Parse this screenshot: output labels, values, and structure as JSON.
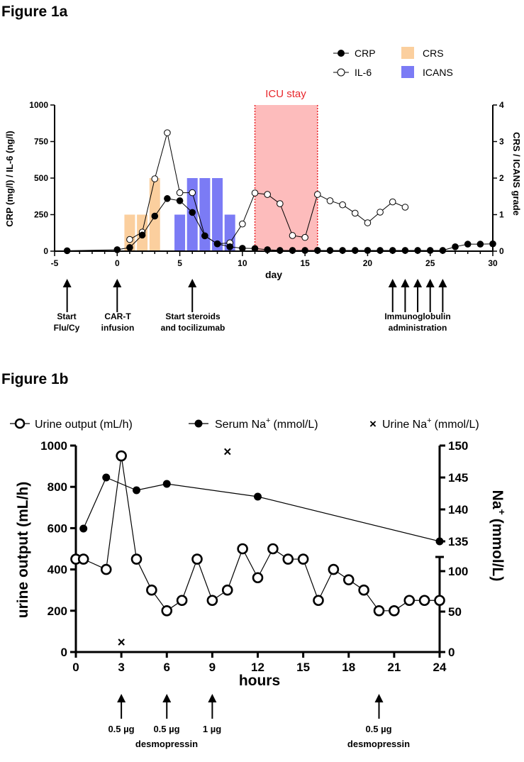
{
  "chart_data": [
    {
      "type": "line",
      "title": "Figure 1a",
      "xlabel": "day",
      "ylabel": "CRP (mg/l) / IL-6 (ng/l)",
      "y2label": "CRS / ICANS grade",
      "xlim": [
        -5,
        30
      ],
      "ylim": [
        0,
        1000
      ],
      "y2lim": [
        0,
        4
      ],
      "xticks": [
        -5,
        0,
        5,
        10,
        15,
        20,
        25,
        30
      ],
      "yticks": [
        0,
        250,
        500,
        750,
        1000
      ],
      "y2ticks": [
        0,
        1,
        2,
        3,
        4
      ],
      "legend": [
        "CRP",
        "IL-6",
        "CRS",
        "ICANS"
      ],
      "legend_position": "top-right",
      "colors": {
        "CRS": "#fbcf9e",
        "ICANS": "#7b7bf5",
        "ICU": "#fdbcbc",
        "ICU_border": "#e8262b"
      },
      "shaded_region": {
        "label": "ICU stay",
        "from": 11,
        "to": 16
      },
      "series": [
        {
          "name": "CRP",
          "marker": "filled",
          "x": [
            -4,
            0,
            1,
            2,
            3,
            4,
            5,
            6,
            7,
            8,
            9,
            10,
            11,
            12,
            13,
            14,
            15,
            16,
            17,
            18,
            19,
            20,
            21,
            22,
            23,
            24,
            25,
            26,
            27,
            28,
            29,
            30
          ],
          "y": [
            3,
            10,
            25,
            110,
            240,
            360,
            345,
            265,
            105,
            50,
            30,
            20,
            18,
            10,
            5,
            5,
            5,
            5,
            5,
            5,
            5,
            5,
            5,
            5,
            5,
            5,
            5,
            5,
            30,
            48,
            48,
            50
          ]
        },
        {
          "name": "IL-6",
          "marker": "open",
          "x": [
            1,
            2,
            3,
            4,
            5,
            6,
            7,
            8,
            9,
            10,
            11,
            12,
            13,
            14,
            15,
            16,
            17,
            18,
            19,
            20,
            21,
            22,
            23
          ],
          "y": [
            80,
            130,
            495,
            810,
            400,
            400,
            105,
            50,
            57,
            186,
            398,
            388,
            325,
            107,
            94,
            388,
            345,
            317,
            260,
            194,
            267,
            337,
            301
          ]
        },
        {
          "name": "CRS",
          "type": "bar",
          "axis": "y2",
          "x": [
            1,
            2,
            3
          ],
          "y": [
            1,
            1,
            2
          ]
        },
        {
          "name": "ICANS",
          "type": "bar",
          "axis": "y2",
          "x": [
            5,
            6,
            7,
            8,
            9
          ],
          "y": [
            1,
            2,
            2,
            2,
            1
          ]
        }
      ],
      "annotations": [
        {
          "x": -4,
          "lines": [
            "Start",
            "Flu/Cy"
          ]
        },
        {
          "x": 0,
          "lines": [
            "CAR-T",
            "infusion"
          ]
        },
        {
          "x": 6,
          "lines": [
            "Start steroids",
            "and tocilizumab"
          ]
        },
        {
          "x": 24,
          "lines": [
            "Immunoglobulin",
            "administration"
          ]
        }
      ],
      "arrow_days": [
        -4,
        0,
        6,
        22,
        23,
        24,
        25,
        26
      ]
    },
    {
      "type": "line",
      "title": "Figure 1b",
      "xlabel": "hours",
      "ylabel": "urine output (mL/h)",
      "y2label": "Na+ (mmol/L)",
      "xlim": [
        0,
        24
      ],
      "ylim": [
        0,
        1000
      ],
      "y2_upper": [
        135,
        150
      ],
      "y2_lower": [
        0,
        117
      ],
      "xticks": [
        0,
        3,
        6,
        9,
        12,
        15,
        18,
        21,
        24
      ],
      "yticks": [
        0,
        200,
        400,
        600,
        800,
        1000
      ],
      "y2_upper_ticks": [
        135,
        140,
        145,
        150
      ],
      "y2_lower_ticks": [
        0,
        50,
        100
      ],
      "legend": [
        "Urine output (mL/h)",
        "Serum Na",
        "Urine Na"
      ],
      "legend_unit": "(mmol/L)",
      "legend_sup": "+",
      "legend_position": "top",
      "series": [
        {
          "name": "Urine output (mL/h)",
          "marker": "open",
          "axis": "y",
          "x": [
            0,
            0.5,
            2,
            3,
            4,
            5,
            6,
            7,
            8,
            9,
            10,
            11,
            12,
            13,
            14,
            15,
            16,
            17,
            18,
            19,
            20,
            21,
            22,
            23,
            24
          ],
          "y": [
            450,
            450,
            400,
            950,
            450,
            300,
            200,
            250,
            450,
            250,
            300,
            500,
            360,
            500,
            450,
            450,
            250,
            400,
            350,
            300,
            200,
            200,
            250,
            250,
            250
          ]
        },
        {
          "name": "Serum Na+ (mmol/L)",
          "marker": "filled",
          "axis": "y2",
          "x": [
            0.5,
            2,
            4,
            6,
            12,
            24
          ],
          "y": [
            137,
            145,
            143,
            144,
            142,
            135
          ]
        },
        {
          "name": "Urine Na+ (mmol/L)",
          "marker": "x",
          "axis": "y2",
          "x": [
            3,
            10
          ],
          "y": [
            12,
            149
          ]
        }
      ],
      "annotations": [
        {
          "x": 3,
          "lines": [
            "0.5 µg"
          ]
        },
        {
          "x": 6,
          "lines": [
            "0.5 µg"
          ]
        },
        {
          "x": 9,
          "lines": [
            "1 µg"
          ]
        },
        {
          "x": 6,
          "lines": [
            "desmopressin"
          ],
          "row": 2
        },
        {
          "x": 20,
          "lines": [
            "0.5 µg",
            "desmopressin"
          ]
        }
      ],
      "arrow_hours": [
        3,
        6,
        9,
        20
      ]
    }
  ]
}
